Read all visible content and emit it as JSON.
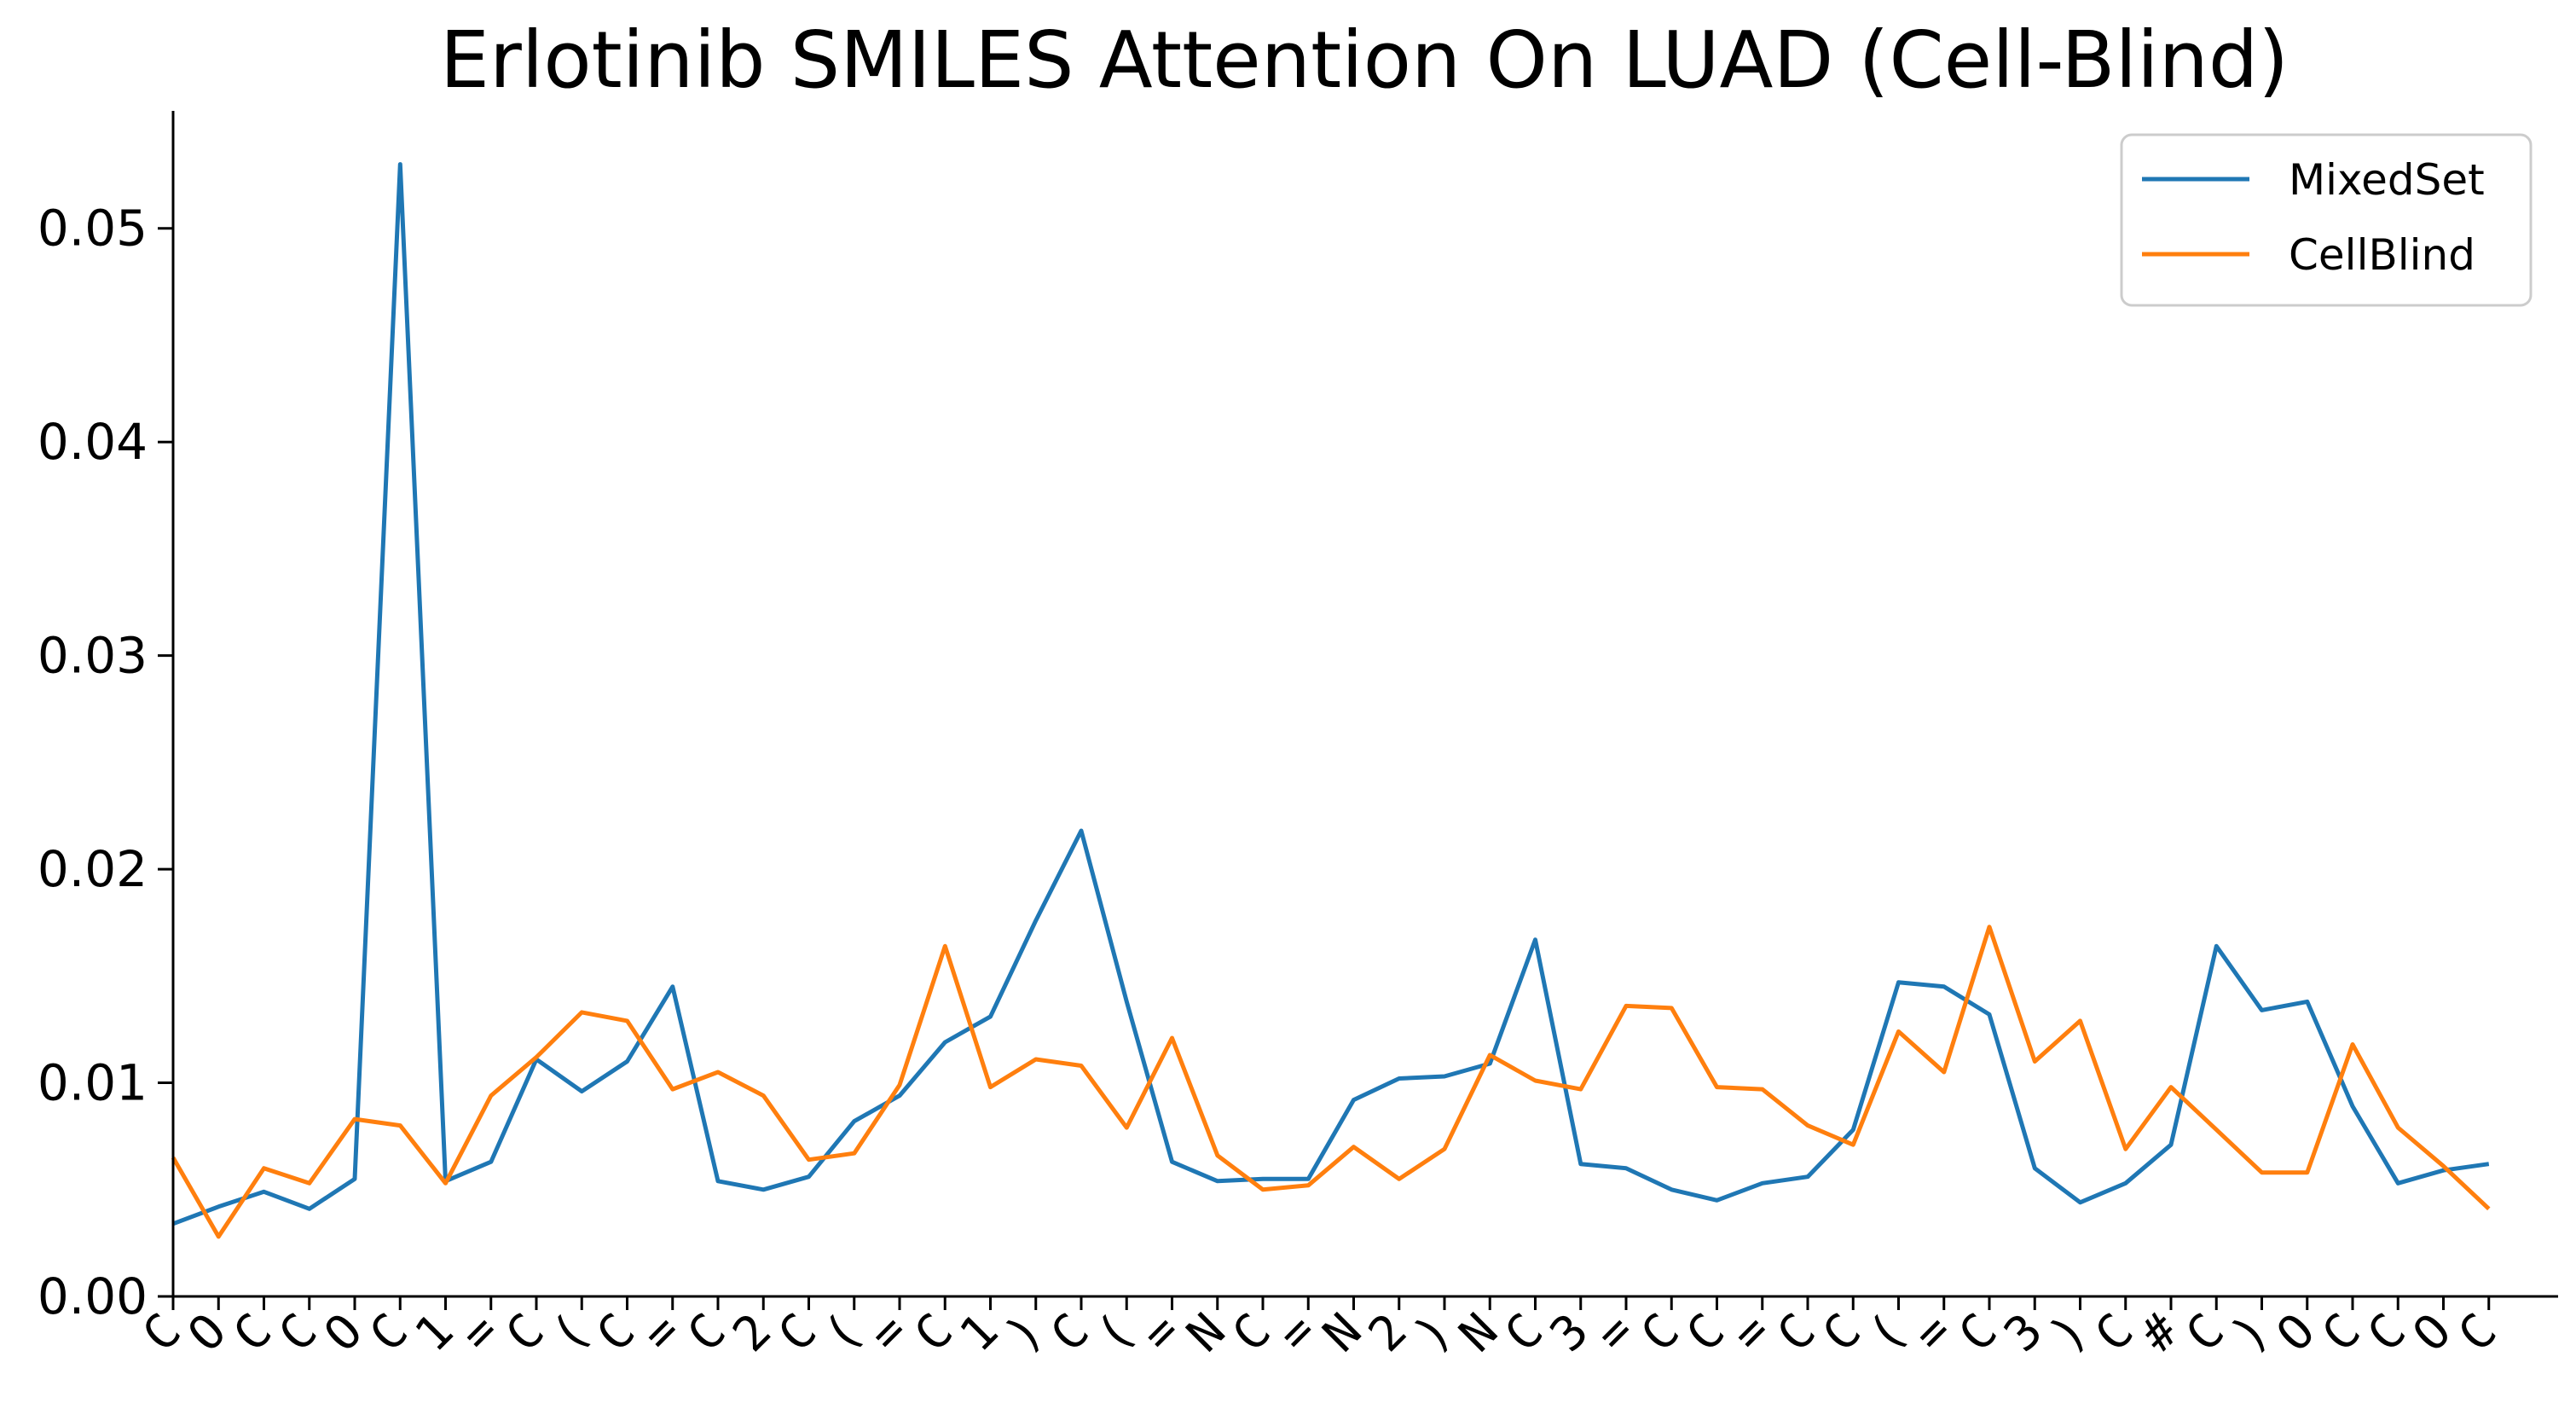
{
  "chart_data": {
    "type": "line",
    "title": "Erlotinib SMILES Attention On LUAD (Cell-Blind)",
    "xlabel": "",
    "ylabel": "",
    "categories": [
      "C",
      "O",
      "C",
      "C",
      "O",
      "C",
      "1",
      "=",
      "C",
      "(",
      "C",
      "=",
      "C",
      "2",
      "C",
      "(",
      "=",
      "C",
      "1",
      ")",
      "C",
      "(",
      "=",
      "N",
      "C",
      "=",
      "N",
      "2",
      ")",
      "N",
      "C",
      "3",
      "=",
      "C",
      "C",
      "=",
      "C",
      "C",
      "(",
      "=",
      "C",
      "3",
      ")",
      "C",
      "#",
      "C",
      ")",
      "O",
      "C",
      "C",
      "O",
      "C"
    ],
    "yticks": [
      "0.00",
      "0.01",
      "0.02",
      "0.03",
      "0.04",
      "0.05"
    ],
    "ylim": [
      0,
      0.0555
    ],
    "legend_position": "top-right",
    "grid": false,
    "series": [
      {
        "name": "MixedSet",
        "color": "#1f77b4",
        "values": [
          0.0034,
          0.0042,
          0.0049,
          0.0041,
          0.0055,
          0.053,
          0.0054,
          0.0063,
          0.0111,
          0.0096,
          0.011,
          0.0145,
          0.0054,
          0.005,
          0.0056,
          0.0082,
          0.0094,
          0.0119,
          0.0131,
          0.0176,
          0.0218,
          0.0138,
          0.0063,
          0.0054,
          0.0055,
          0.0055,
          0.0092,
          0.0102,
          0.0103,
          0.0109,
          0.0167,
          0.0062,
          0.006,
          0.005,
          0.0045,
          0.0053,
          0.0056,
          0.0078,
          0.0147,
          0.0145,
          0.0132,
          0.006,
          0.0044,
          0.0053,
          0.0071,
          0.0164,
          0.0134,
          0.0138,
          0.0089,
          0.0053,
          0.0059,
          0.0062
        ]
      },
      {
        "name": "CellBlind",
        "color": "#ff7f0e",
        "values": [
          0.0065,
          0.0028,
          0.006,
          0.0053,
          0.0083,
          0.008,
          0.0053,
          0.0094,
          0.0112,
          0.0133,
          0.0129,
          0.0097,
          0.0105,
          0.0094,
          0.0064,
          0.0067,
          0.0099,
          0.0164,
          0.0098,
          0.0111,
          0.0108,
          0.0079,
          0.0121,
          0.0066,
          0.005,
          0.0052,
          0.007,
          0.0055,
          0.0069,
          0.0113,
          0.0101,
          0.0097,
          0.0136,
          0.0135,
          0.0098,
          0.0097,
          0.008,
          0.0071,
          0.0124,
          0.0105,
          0.0173,
          0.011,
          0.0129,
          0.0069,
          0.0098,
          0.0078,
          0.0058,
          0.0058,
          0.0118,
          0.0079,
          0.0061,
          0.0041
        ]
      }
    ]
  }
}
